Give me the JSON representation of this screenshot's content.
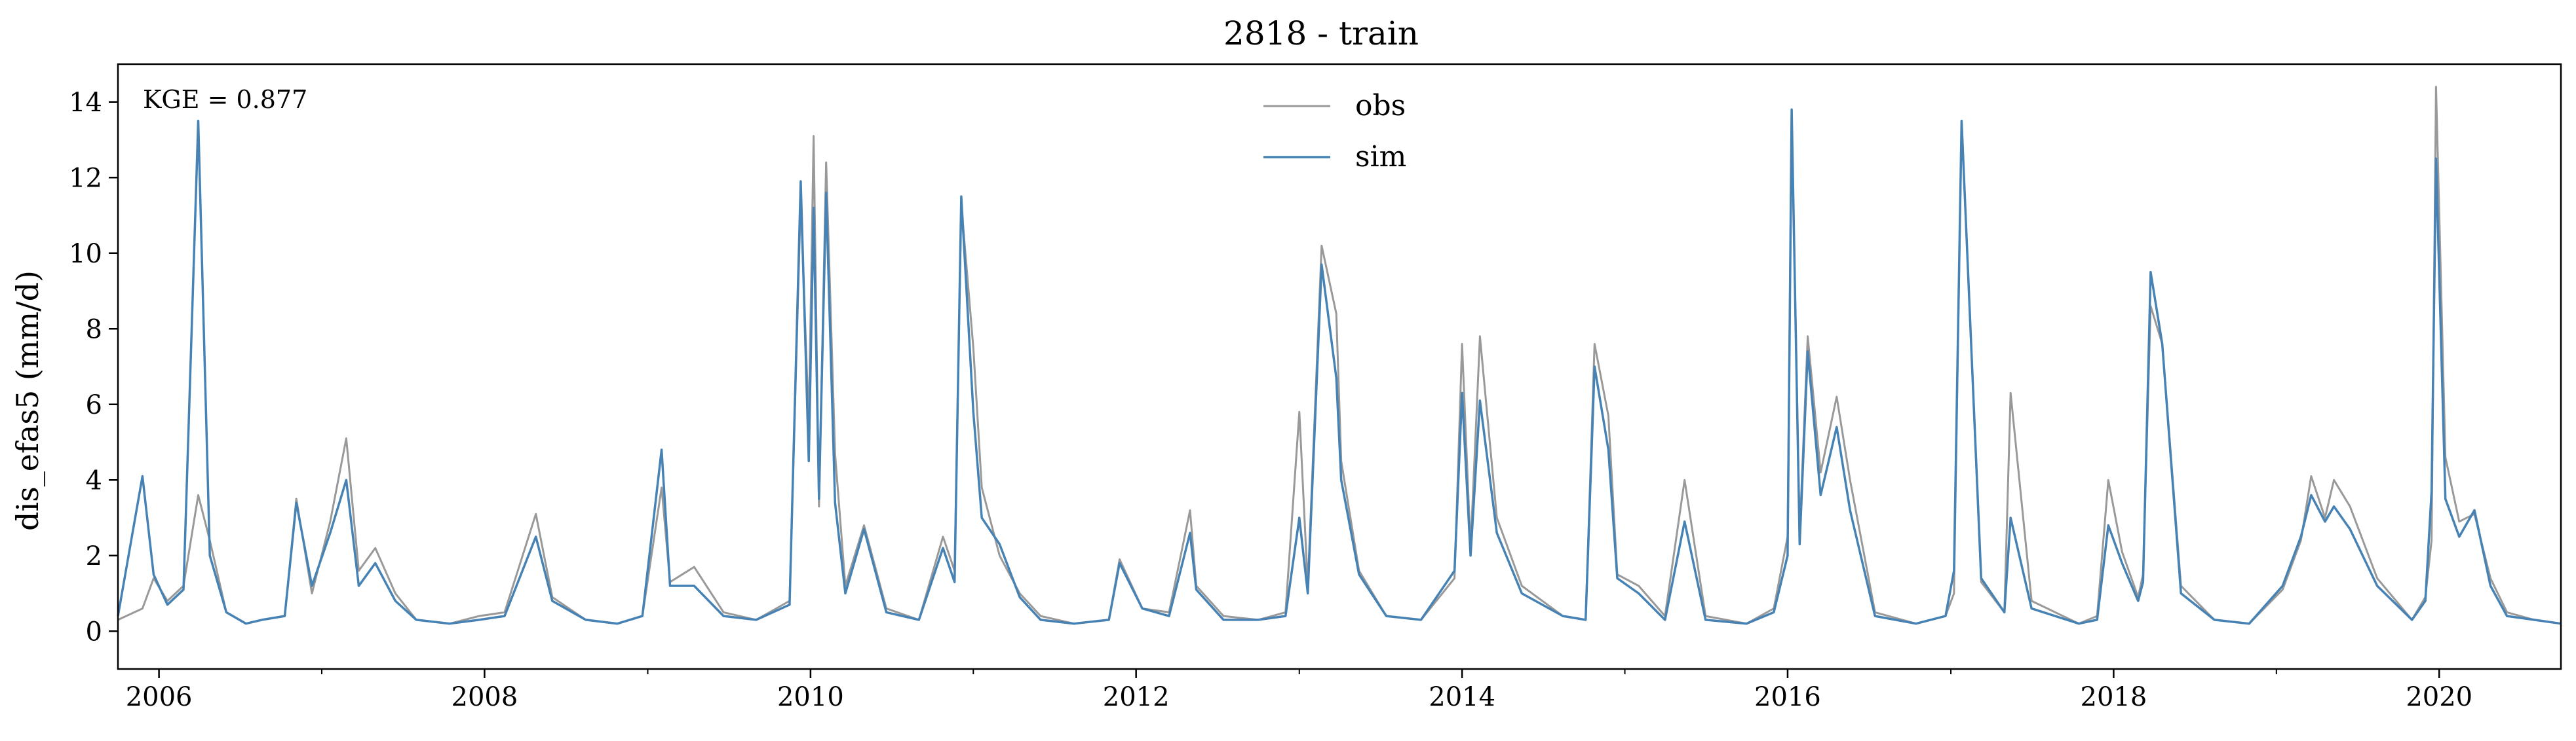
{
  "chart_data": {
    "type": "line",
    "title": "2818 - train",
    "xlabel": "",
    "ylabel": "dis_efas5 (mm/d)",
    "xlim": [
      "2005-10-01",
      "2020-09-30"
    ],
    "ylim": [
      -1,
      15
    ],
    "x_ticks": [
      "2006",
      "2008",
      "2010",
      "2012",
      "2014",
      "2016",
      "2018",
      "2020"
    ],
    "y_ticks": [
      0,
      2,
      4,
      6,
      8,
      10,
      12,
      14
    ],
    "legend_position": "top-center",
    "grid": false,
    "annotation": "KGE = 0.877",
    "colors": {
      "obs": "#999999",
      "sim": "#4682b4"
    },
    "series": [
      {
        "name": "obs",
        "x": [
          "2005-10-01",
          "2005-11-25",
          "2005-12-20",
          "2006-01-20",
          "2006-02-25",
          "2006-03-30",
          "2006-04-25",
          "2006-06-01",
          "2006-07-15",
          "2006-08-20",
          "2006-10-10",
          "2006-11-05",
          "2006-12-10",
          "2007-01-20",
          "2007-02-25",
          "2007-03-25",
          "2007-05-01",
          "2007-06-15",
          "2007-08-01",
          "2007-10-15",
          "2007-12-20",
          "2008-02-15",
          "2008-04-25",
          "2008-06-01",
          "2008-08-15",
          "2008-10-25",
          "2008-12-20",
          "2009-02-01",
          "2009-02-20",
          "2009-04-15",
          "2009-06-20",
          "2009-09-01",
          "2009-11-15",
          "2009-12-10",
          "2009-12-28",
          "2010-01-08",
          "2010-01-20",
          "2010-02-05",
          "2010-02-25",
          "2010-03-20",
          "2010-05-01",
          "2010-06-20",
          "2010-09-01",
          "2010-10-25",
          "2010-11-20",
          "2010-12-05",
          "2011-01-01",
          "2011-01-20",
          "2011-03-01",
          "2011-04-15",
          "2011-06-01",
          "2011-08-15",
          "2011-11-01",
          "2011-11-25",
          "2012-01-15",
          "2012-03-15",
          "2012-05-01",
          "2012-05-15",
          "2012-07-15",
          "2012-10-01",
          "2012-12-01",
          "2013-01-01",
          "2013-01-20",
          "2013-02-20",
          "2013-03-25",
          "2013-04-05",
          "2013-05-15",
          "2013-07-15",
          "2013-10-01",
          "2013-12-15",
          "2014-01-01",
          "2014-01-20",
          "2014-02-10",
          "2014-03-20",
          "2014-05-15",
          "2014-08-15",
          "2014-10-05",
          "2014-10-25",
          "2014-11-25",
          "2014-12-15",
          "2015-02-01",
          "2015-04-01",
          "2015-05-15",
          "2015-07-01",
          "2015-10-01",
          "2015-12-01",
          "2016-01-01",
          "2016-01-10",
          "2016-01-28",
          "2016-02-15",
          "2016-03-15",
          "2016-04-20",
          "2016-05-20",
          "2016-07-15",
          "2016-10-15",
          "2016-12-20",
          "2017-01-08",
          "2017-01-25",
          "2017-03-10",
          "2017-05-01",
          "2017-05-15",
          "2017-07-01",
          "2017-10-15",
          "2017-11-25",
          "2017-12-20",
          "2018-01-20",
          "2018-02-25",
          "2018-03-08",
          "2018-03-25",
          "2018-04-20",
          "2018-06-01",
          "2018-08-15",
          "2018-11-01",
          "2019-01-15",
          "2019-02-25",
          "2019-03-20",
          "2019-04-20",
          "2019-05-10",
          "2019-06-15",
          "2019-08-15",
          "2019-11-01",
          "2019-12-01",
          "2019-12-15",
          "2019-12-25",
          "2020-01-15",
          "2020-02-15",
          "2020-03-20",
          "2020-04-25",
          "2020-06-01",
          "2020-08-01",
          "2020-09-30"
        ],
        "y": [
          0.3,
          0.6,
          1.4,
          0.8,
          1.2,
          3.6,
          2.4,
          0.5,
          0.2,
          0.3,
          0.4,
          3.5,
          1.0,
          2.9,
          5.1,
          1.6,
          2.2,
          1.0,
          0.3,
          0.2,
          0.4,
          0.5,
          3.1,
          0.9,
          0.3,
          0.2,
          0.4,
          3.8,
          1.3,
          1.7,
          0.5,
          0.3,
          0.8,
          11.4,
          5.5,
          13.1,
          3.3,
          12.4,
          4.7,
          1.2,
          2.8,
          0.6,
          0.3,
          2.5,
          1.6,
          11.3,
          7.5,
          3.8,
          2.0,
          1.0,
          0.4,
          0.2,
          0.3,
          1.9,
          0.6,
          0.5,
          3.2,
          1.2,
          0.4,
          0.3,
          0.5,
          5.8,
          1.2,
          10.2,
          8.4,
          4.5,
          1.6,
          0.4,
          0.3,
          1.4,
          7.6,
          2.2,
          7.8,
          3.0,
          1.2,
          0.4,
          0.3,
          7.6,
          5.7,
          1.5,
          1.2,
          0.4,
          4.0,
          0.4,
          0.2,
          0.6,
          2.5,
          13.7,
          2.6,
          7.8,
          4.2,
          6.2,
          4.0,
          0.5,
          0.2,
          0.4,
          1.0,
          13.5,
          1.3,
          0.5,
          6.3,
          0.8,
          0.2,
          0.4,
          4.0,
          2.1,
          0.9,
          1.5,
          8.6,
          7.6,
          1.2,
          0.3,
          0.2,
          1.1,
          2.4,
          4.1,
          3.0,
          4.0,
          3.3,
          1.4,
          0.3,
          0.9,
          2.4,
          14.4,
          4.6,
          2.9,
          3.1,
          1.4,
          0.5,
          0.3,
          0.2
        ]
      },
      {
        "name": "sim",
        "x": [
          "2005-10-01",
          "2005-11-25",
          "2005-12-20",
          "2006-01-20",
          "2006-02-25",
          "2006-03-30",
          "2006-04-25",
          "2006-06-01",
          "2006-07-15",
          "2006-08-20",
          "2006-10-10",
          "2006-11-05",
          "2006-12-10",
          "2007-01-20",
          "2007-02-25",
          "2007-03-25",
          "2007-05-01",
          "2007-06-15",
          "2007-08-01",
          "2007-10-15",
          "2007-12-20",
          "2008-02-15",
          "2008-04-25",
          "2008-06-01",
          "2008-08-15",
          "2008-10-25",
          "2008-12-20",
          "2009-02-01",
          "2009-02-20",
          "2009-04-15",
          "2009-06-20",
          "2009-09-01",
          "2009-11-15",
          "2009-12-10",
          "2009-12-28",
          "2010-01-08",
          "2010-01-20",
          "2010-02-05",
          "2010-02-25",
          "2010-03-20",
          "2010-05-01",
          "2010-06-20",
          "2010-09-01",
          "2010-10-25",
          "2010-11-20",
          "2010-12-05",
          "2011-01-01",
          "2011-01-20",
          "2011-03-01",
          "2011-04-15",
          "2011-06-01",
          "2011-08-15",
          "2011-11-01",
          "2011-11-25",
          "2012-01-15",
          "2012-03-15",
          "2012-05-01",
          "2012-05-15",
          "2012-07-15",
          "2012-10-01",
          "2012-12-01",
          "2013-01-01",
          "2013-01-20",
          "2013-02-20",
          "2013-03-25",
          "2013-04-05",
          "2013-05-15",
          "2013-07-15",
          "2013-10-01",
          "2013-12-15",
          "2014-01-01",
          "2014-01-20",
          "2014-02-10",
          "2014-03-20",
          "2014-05-15",
          "2014-08-15",
          "2014-10-05",
          "2014-10-25",
          "2014-11-25",
          "2014-12-15",
          "2015-02-01",
          "2015-04-01",
          "2015-05-15",
          "2015-07-01",
          "2015-10-01",
          "2015-12-01",
          "2016-01-01",
          "2016-01-10",
          "2016-01-28",
          "2016-02-15",
          "2016-03-15",
          "2016-04-20",
          "2016-05-20",
          "2016-07-15",
          "2016-10-15",
          "2016-12-20",
          "2017-01-08",
          "2017-01-25",
          "2017-03-10",
          "2017-05-01",
          "2017-05-15",
          "2017-07-01",
          "2017-10-15",
          "2017-11-25",
          "2017-12-20",
          "2018-01-20",
          "2018-02-25",
          "2018-03-08",
          "2018-03-25",
          "2018-04-20",
          "2018-06-01",
          "2018-08-15",
          "2018-11-01",
          "2019-01-15",
          "2019-02-25",
          "2019-03-20",
          "2019-04-20",
          "2019-05-10",
          "2019-06-15",
          "2019-08-15",
          "2019-11-01",
          "2019-12-01",
          "2019-12-15",
          "2019-12-25",
          "2020-01-15",
          "2020-02-15",
          "2020-03-20",
          "2020-04-25",
          "2020-06-01",
          "2020-08-01",
          "2020-09-30"
        ],
        "y": [
          0.4,
          4.1,
          1.5,
          0.7,
          1.1,
          13.5,
          2.0,
          0.5,
          0.2,
          0.3,
          0.4,
          3.4,
          1.2,
          2.6,
          4.0,
          1.2,
          1.8,
          0.8,
          0.3,
          0.2,
          0.3,
          0.4,
          2.5,
          0.8,
          0.3,
          0.2,
          0.4,
          4.8,
          1.2,
          1.2,
          0.4,
          0.3,
          0.7,
          11.9,
          4.5,
          11.2,
          3.5,
          11.6,
          3.4,
          1.0,
          2.7,
          0.5,
          0.3,
          2.2,
          1.3,
          11.5,
          5.8,
          3.0,
          2.3,
          0.9,
          0.3,
          0.2,
          0.3,
          1.8,
          0.6,
          0.4,
          2.6,
          1.1,
          0.3,
          0.3,
          0.4,
          3.0,
          1.0,
          9.7,
          6.7,
          4.0,
          1.5,
          0.4,
          0.3,
          1.6,
          6.3,
          2.0,
          6.1,
          2.6,
          1.0,
          0.4,
          0.3,
          7.0,
          4.8,
          1.4,
          1.0,
          0.3,
          2.9,
          0.3,
          0.2,
          0.5,
          2.0,
          13.8,
          2.3,
          7.4,
          3.6,
          5.4,
          3.2,
          0.4,
          0.2,
          0.4,
          1.6,
          13.5,
          1.4,
          0.5,
          3.0,
          0.6,
          0.2,
          0.3,
          2.8,
          1.8,
          0.8,
          1.3,
          9.5,
          7.6,
          1.0,
          0.3,
          0.2,
          1.2,
          2.5,
          3.6,
          2.9,
          3.3,
          2.7,
          1.2,
          0.3,
          0.8,
          3.7,
          12.5,
          3.5,
          2.5,
          3.2,
          1.2,
          0.4,
          0.3,
          0.2
        ]
      }
    ]
  }
}
